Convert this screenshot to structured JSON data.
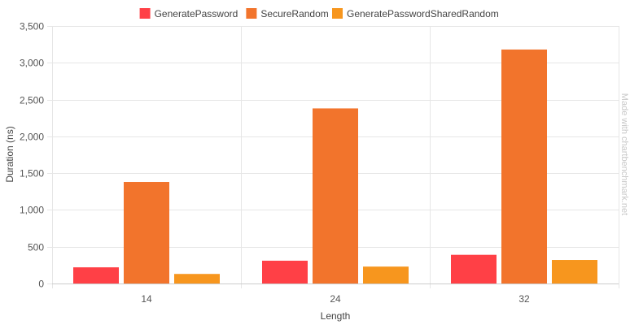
{
  "chart_data": {
    "type": "bar",
    "title": "",
    "xlabel": "Length",
    "ylabel": "Duration (ns)",
    "categories": [
      "14",
      "24",
      "32"
    ],
    "ylim": [
      0,
      3500
    ],
    "yticks": [
      0,
      500,
      1000,
      1500,
      2000,
      2500,
      3000,
      3500
    ],
    "ytick_labels": [
      "0",
      "500",
      "1,000",
      "1,500",
      "2,000",
      "2,500",
      "3,000",
      "3,500"
    ],
    "grid": true,
    "legend_position": "top",
    "series": [
      {
        "name": "GeneratePassword",
        "color": "#ff4046",
        "values": [
          220,
          310,
          390
        ]
      },
      {
        "name": "SecureRandom",
        "color": "#f2742c",
        "values": [
          1380,
          2380,
          3180
        ]
      },
      {
        "name": "GeneratePasswordSharedRandom",
        "color": "#f7961e",
        "values": [
          130,
          230,
          320
        ]
      }
    ]
  },
  "watermark": "Made with chartbenchmark.net"
}
